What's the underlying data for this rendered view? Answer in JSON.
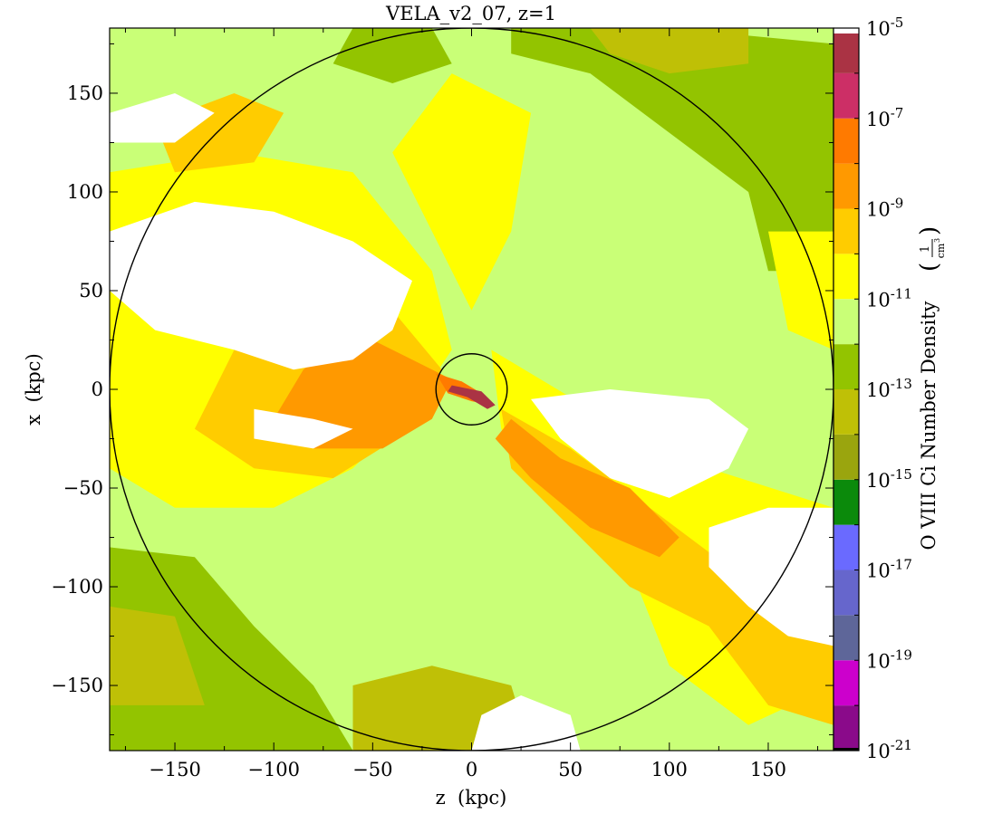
{
  "chart_data": {
    "type": "heatmap",
    "title": "VELA_v2_07, z=1",
    "xlabel": "z  (kpc)",
    "ylabel": "x  (kpc)",
    "xlim": [
      -183,
      183
    ],
    "ylim": [
      -183,
      183
    ],
    "x_ticks": [
      -150,
      -100,
      -50,
      0,
      50,
      100,
      150
    ],
    "x_tick_labels": [
      "−150",
      "−100",
      "−50",
      "0",
      "50",
      "100",
      "150"
    ],
    "y_ticks": [
      150,
      100,
      50,
      0,
      -50,
      -100,
      -150
    ],
    "y_tick_labels": [
      "150",
      "100",
      "50",
      "0",
      "−50",
      "−100",
      "−150"
    ],
    "colorbar": {
      "label_main": "O VIII Ci Number Density",
      "label_unit_num": "1",
      "label_unit_den": "cm",
      "label_unit_exp": "3",
      "scale": "log",
      "range_log10": [
        -21,
        -5
      ],
      "tick_exponents": [
        -5,
        -7,
        -9,
        -11,
        -13,
        -15,
        -17,
        -19,
        -21
      ],
      "tick_base": "10",
      "tick_exponent_labels": [
        "-5",
        "-7",
        "-9",
        "-11",
        "-13",
        "-15",
        "-17",
        "-19",
        "-21"
      ],
      "bins": [
        {
          "from": -21,
          "to": -20,
          "color": "#8a0a8a"
        },
        {
          "from": -20,
          "to": -19,
          "color": "#cc00cc"
        },
        {
          "from": -19,
          "to": -18,
          "color": "#5e6699"
        },
        {
          "from": -18,
          "to": -17,
          "color": "#6666cc"
        },
        {
          "from": -17,
          "to": -16,
          "color": "#6a6aff"
        },
        {
          "from": -16,
          "to": -15,
          "color": "#0b8a0b"
        },
        {
          "from": -15,
          "to": -14,
          "color": "#9aa50e"
        },
        {
          "from": -14,
          "to": -13,
          "color": "#bfc006"
        },
        {
          "from": -13,
          "to": -12,
          "color": "#93c400"
        },
        {
          "from": -12,
          "to": -11,
          "color": "#c9ff77"
        },
        {
          "from": -11,
          "to": -10,
          "color": "#ffff00"
        },
        {
          "from": -10,
          "to": -9,
          "color": "#ffcc00"
        },
        {
          "from": -9,
          "to": -8,
          "color": "#ff9900"
        },
        {
          "from": -8,
          "to": -7,
          "color": "#ff7a00"
        },
        {
          "from": -7,
          "to": -6,
          "color": "#cc2f66"
        },
        {
          "from": -6,
          "to": -5,
          "color": "#aa3344"
        }
      ]
    },
    "overlays": [
      {
        "shape": "circle",
        "center": [
          0,
          0
        ],
        "radius": 183,
        "color": "#000000"
      },
      {
        "shape": "circle",
        "center": [
          0,
          0
        ],
        "radius": 18,
        "color": "#000000"
      }
    ],
    "map_regions": [
      {
        "kind": "background",
        "level_log10": -12.5,
        "color": "#c9ff77"
      },
      {
        "kind": "blob",
        "level_log10": -13.5,
        "color": "#93c400",
        "outline": [
          [
            20,
            183
          ],
          [
            100,
            183
          ],
          [
            183,
            175
          ],
          [
            183,
            60
          ],
          [
            150,
            60
          ],
          [
            140,
            100
          ],
          [
            100,
            130
          ],
          [
            80,
            145
          ],
          [
            60,
            160
          ],
          [
            20,
            170
          ]
        ]
      },
      {
        "kind": "blob",
        "level_log10": -13.5,
        "color": "#93c400",
        "outline": [
          [
            -183,
            -80
          ],
          [
            -140,
            -85
          ],
          [
            -110,
            -120
          ],
          [
            -80,
            -150
          ],
          [
            -60,
            -183
          ],
          [
            -183,
            -183
          ]
        ]
      },
      {
        "kind": "blob",
        "level_log10": -13.5,
        "color": "#93c400",
        "outline": [
          [
            -183,
            60
          ],
          [
            -160,
            40
          ],
          [
            -120,
            20
          ],
          [
            -100,
            -20
          ],
          [
            -150,
            -50
          ],
          [
            -183,
            -40
          ]
        ]
      },
      {
        "kind": "blob",
        "level_log10": -13.5,
        "color": "#93c400",
        "outline": [
          [
            -60,
            183
          ],
          [
            -20,
            183
          ],
          [
            -10,
            165
          ],
          [
            -40,
            155
          ],
          [
            -70,
            165
          ]
        ]
      },
      {
        "kind": "blob",
        "level_log10": -14.5,
        "color": "#bfc006",
        "outline": [
          [
            60,
            183
          ],
          [
            140,
            183
          ],
          [
            140,
            165
          ],
          [
            100,
            160
          ],
          [
            70,
            170
          ]
        ]
      },
      {
        "kind": "blob",
        "level_log10": -14.5,
        "color": "#bfc006",
        "outline": [
          [
            -183,
            -110
          ],
          [
            -150,
            -115
          ],
          [
            -135,
            -160
          ],
          [
            -183,
            -160
          ]
        ]
      },
      {
        "kind": "blob",
        "level_log10": -14.5,
        "color": "#bfc006",
        "outline": [
          [
            -60,
            -150
          ],
          [
            -20,
            -140
          ],
          [
            20,
            -150
          ],
          [
            30,
            -183
          ],
          [
            -60,
            -183
          ]
        ]
      },
      {
        "kind": "blob",
        "level_log10": -10.5,
        "color": "#ffff00",
        "outline": [
          [
            -183,
            110
          ],
          [
            -120,
            120
          ],
          [
            -60,
            110
          ],
          [
            -20,
            60
          ],
          [
            -10,
            20
          ],
          [
            -30,
            -10
          ],
          [
            -60,
            -40
          ],
          [
            -100,
            -60
          ],
          [
            -150,
            -60
          ],
          [
            -183,
            -40
          ]
        ]
      },
      {
        "kind": "blob",
        "level_log10": -10.5,
        "color": "#ffff00",
        "outline": [
          [
            10,
            20
          ],
          [
            60,
            -10
          ],
          [
            120,
            -40
          ],
          [
            183,
            -60
          ],
          [
            183,
            -150
          ],
          [
            140,
            -170
          ],
          [
            100,
            -140
          ],
          [
            80,
            -90
          ],
          [
            40,
            -60
          ],
          [
            15,
            -20
          ]
        ]
      },
      {
        "kind": "blob",
        "level_log10": -10.5,
        "color": "#ffff00",
        "outline": [
          [
            -40,
            120
          ],
          [
            -10,
            160
          ],
          [
            30,
            140
          ],
          [
            20,
            80
          ],
          [
            0,
            40
          ]
        ]
      },
      {
        "kind": "blob",
        "level_log10": -10.5,
        "color": "#ffff00",
        "outline": [
          [
            150,
            80
          ],
          [
            183,
            80
          ],
          [
            183,
            20
          ],
          [
            160,
            30
          ]
        ]
      },
      {
        "kind": "blob",
        "level_log10": -9.5,
        "color": "#ffcc00",
        "outline": [
          [
            -130,
            60
          ],
          [
            -80,
            70
          ],
          [
            -40,
            40
          ],
          [
            -15,
            10
          ],
          [
            -30,
            -20
          ],
          [
            -70,
            -45
          ],
          [
            -110,
            -40
          ],
          [
            -140,
            -20
          ],
          [
            -120,
            20
          ]
        ]
      },
      {
        "kind": "blob",
        "level_log10": -9.5,
        "color": "#ffcc00",
        "outline": [
          [
            15,
            -10
          ],
          [
            50,
            -30
          ],
          [
            90,
            -60
          ],
          [
            130,
            -90
          ],
          [
            160,
            -110
          ],
          [
            183,
            -120
          ],
          [
            183,
            -170
          ],
          [
            150,
            -160
          ],
          [
            120,
            -120
          ],
          [
            80,
            -100
          ],
          [
            50,
            -70
          ],
          [
            20,
            -40
          ]
        ]
      },
      {
        "kind": "blob",
        "level_log10": -9.5,
        "color": "#ffcc00",
        "outline": [
          [
            -160,
            135
          ],
          [
            -120,
            150
          ],
          [
            -95,
            140
          ],
          [
            -110,
            115
          ],
          [
            -150,
            110
          ]
        ]
      },
      {
        "kind": "blob",
        "level_log10": -8.5,
        "color": "#ff9900",
        "outline": [
          [
            -60,
            30
          ],
          [
            -30,
            15
          ],
          [
            -10,
            5
          ],
          [
            -20,
            -15
          ],
          [
            -45,
            -30
          ],
          [
            -80,
            -30
          ],
          [
            -100,
            -15
          ],
          [
            -85,
            10
          ]
        ]
      },
      {
        "kind": "blob",
        "level_log10": -8.5,
        "color": "#ff9900",
        "outline": [
          [
            20,
            -15
          ],
          [
            45,
            -35
          ],
          [
            80,
            -50
          ],
          [
            105,
            -75
          ],
          [
            95,
            -85
          ],
          [
            60,
            -70
          ],
          [
            30,
            -45
          ],
          [
            12,
            -25
          ]
        ]
      },
      {
        "kind": "blob",
        "level_log10": -7.5,
        "color": "#ff7a00",
        "outline": [
          [
            -18,
            8
          ],
          [
            -5,
            4
          ],
          [
            5,
            -2
          ],
          [
            10,
            -8
          ],
          [
            0,
            -6
          ],
          [
            -12,
            -2
          ]
        ]
      },
      {
        "kind": "blob",
        "level_log10": -5.5,
        "color": "#aa3344",
        "outline": [
          [
            -10,
            2
          ],
          [
            5,
            -1
          ],
          [
            12,
            -8
          ],
          [
            8,
            -10
          ],
          [
            -2,
            -4
          ],
          [
            -12,
            -1
          ]
        ]
      },
      {
        "kind": "empty",
        "color": "#ffffff",
        "outline": [
          [
            -183,
            80
          ],
          [
            -140,
            95
          ],
          [
            -100,
            90
          ],
          [
            -60,
            75
          ],
          [
            -30,
            55
          ],
          [
            -40,
            30
          ],
          [
            -60,
            15
          ],
          [
            -90,
            10
          ],
          [
            -120,
            20
          ],
          [
            -160,
            30
          ],
          [
            -183,
            50
          ]
        ]
      },
      {
        "kind": "empty",
        "color": "#ffffff",
        "outline": [
          [
            -183,
            140
          ],
          [
            -150,
            150
          ],
          [
            -130,
            140
          ],
          [
            -150,
            125
          ],
          [
            -183,
            125
          ]
        ]
      },
      {
        "kind": "empty",
        "color": "#ffffff",
        "outline": [
          [
            -110,
            -10
          ],
          [
            -80,
            -15
          ],
          [
            -60,
            -20
          ],
          [
            -80,
            -30
          ],
          [
            -110,
            -25
          ]
        ]
      },
      {
        "kind": "empty",
        "color": "#ffffff",
        "outline": [
          [
            30,
            -5
          ],
          [
            70,
            0
          ],
          [
            120,
            -5
          ],
          [
            140,
            -20
          ],
          [
            130,
            -40
          ],
          [
            100,
            -55
          ],
          [
            70,
            -45
          ],
          [
            45,
            -25
          ]
        ]
      },
      {
        "kind": "empty",
        "color": "#ffffff",
        "outline": [
          [
            120,
            -70
          ],
          [
            150,
            -60
          ],
          [
            183,
            -60
          ],
          [
            183,
            -130
          ],
          [
            160,
            -125
          ],
          [
            140,
            -110
          ],
          [
            120,
            -90
          ]
        ]
      },
      {
        "kind": "empty",
        "color": "#ffffff",
        "outline": [
          [
            0,
            -183
          ],
          [
            5,
            -165
          ],
          [
            25,
            -155
          ],
          [
            50,
            -165
          ],
          [
            55,
            -183
          ]
        ]
      }
    ]
  }
}
